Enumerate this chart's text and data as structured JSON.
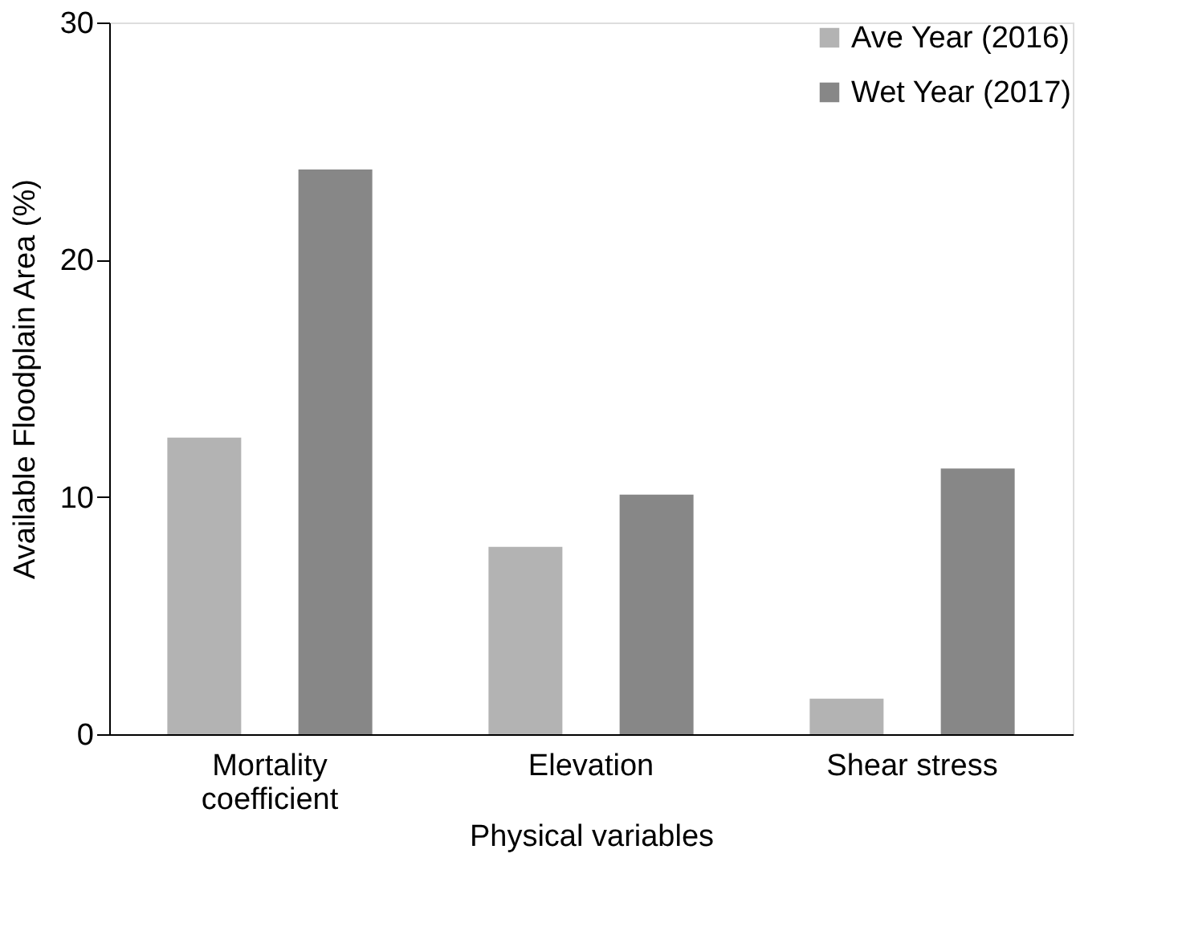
{
  "chart_data": {
    "type": "bar",
    "xlabel": "Physical variables",
    "ylabel": "Available Floodplain Area (%)",
    "categories": [
      "Mortality coefficient",
      "Elevation",
      "Shear stress"
    ],
    "series": [
      {
        "name": "Ave Year (2016)",
        "color": "#b3b3b3",
        "values": [
          12.5,
          7.9,
          1.5
        ]
      },
      {
        "name": "Wet Year (2017)",
        "color": "#878787",
        "values": [
          23.8,
          10.1,
          11.2
        ]
      }
    ],
    "ylim": [
      0,
      30
    ],
    "yticks": [
      0,
      10,
      20,
      30
    ],
    "grid": false,
    "legend": "top right"
  }
}
